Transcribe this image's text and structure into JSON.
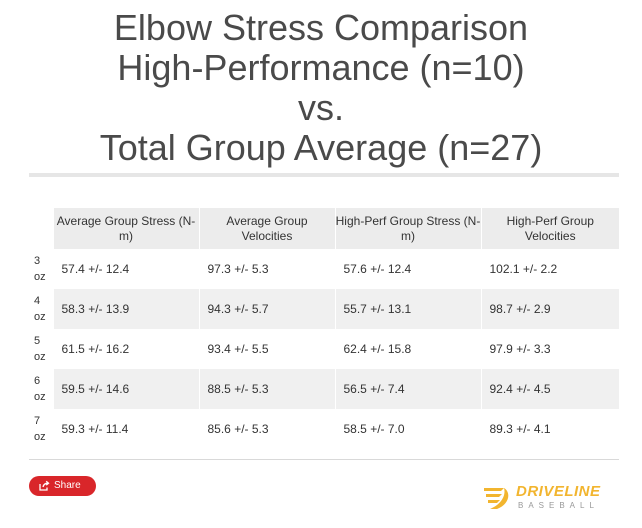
{
  "title_lines": [
    "Elbow Stress Comparison",
    "High-Performance (n=10)",
    "vs.",
    "Total Group Average (n=27)"
  ],
  "chart_data": {
    "type": "table",
    "columns": [
      "",
      "Average Group Stress (N-m)",
      "Average Group Velocities",
      "High-Perf Group Stress (N-m)",
      "High-Perf Group Velocities"
    ],
    "rows": [
      {
        "label": [
          "3",
          "oz"
        ],
        "cells": [
          "57.4 +/- 12.4",
          "97.3 +/- 5.3",
          "57.6 +/- 12.4",
          "102.1 +/- 2.2"
        ]
      },
      {
        "label": [
          "4",
          "oz"
        ],
        "cells": [
          "58.3 +/- 13.9",
          "94.3 +/- 5.7",
          "55.7 +/- 13.1",
          "98.7 +/- 2.9"
        ]
      },
      {
        "label": [
          "5",
          "oz"
        ],
        "cells": [
          "61.5 +/- 16.2",
          "93.4 +/- 5.5",
          "62.4 +/- 15.8",
          "97.9 +/- 3.3"
        ]
      },
      {
        "label": [
          "6",
          "oz"
        ],
        "cells": [
          "59.5 +/- 14.6",
          "88.5 +/- 5.3",
          "56.5 +/- 7.4",
          "92.4 +/- 4.5"
        ]
      },
      {
        "label": [
          "7",
          "oz"
        ],
        "cells": [
          "59.3 +/- 11.4",
          "85.6 +/- 5.3",
          "58.5 +/- 7.0",
          "89.3 +/- 4.1"
        ]
      }
    ]
  },
  "share": {
    "label": "Share",
    "icon": "share-icon",
    "color": "#d9262a"
  },
  "logo": {
    "name": "DRIVELINE",
    "sub": "BASEBALL",
    "color": "#f2b52f"
  }
}
